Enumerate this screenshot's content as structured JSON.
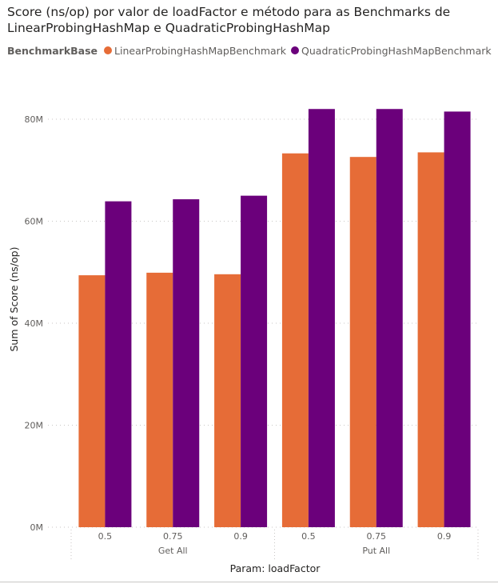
{
  "title_lines": [
    "Score (ns/op) por valor de loadFactor e método para as Benchmarks de",
    "LinearProbingHashMap e QuadraticProbingHashMap"
  ],
  "legend": {
    "title": "BenchmarkBase",
    "items": [
      {
        "label": "LinearProbingHashMapBenchmark",
        "color": "#E66C37"
      },
      {
        "label": "QuadraticProbingHashMapBenchmark",
        "color": "#6B007B"
      }
    ]
  },
  "chart_data": {
    "type": "bar",
    "xlabel": "Param: loadFactor",
    "ylabel": "Sum of Score (ns/op)",
    "ylim": [
      0,
      80000000
    ],
    "y_ticks": [
      {
        "value": 0,
        "label": "0M"
      },
      {
        "value": 20000000,
        "label": "20M"
      },
      {
        "value": 40000000,
        "label": "40M"
      },
      {
        "value": 60000000,
        "label": "60M"
      },
      {
        "value": 80000000,
        "label": "80M"
      }
    ],
    "grid": true,
    "groups": [
      {
        "name": "Get All",
        "categories": [
          "0.5",
          "0.75",
          "0.9"
        ]
      },
      {
        "name": "Put All",
        "categories": [
          "0.5",
          "0.75",
          "0.9"
        ]
      }
    ],
    "series": [
      {
        "name": "LinearProbingHashMapBenchmark",
        "color": "#E66C37",
        "values": [
          49400000,
          49900000,
          49600000,
          73300000,
          72600000,
          73500000
        ]
      },
      {
        "name": "QuadraticProbingHashMapBenchmark",
        "color": "#6B007B",
        "values": [
          63900000,
          64300000,
          65000000,
          82000000,
          82000000,
          81500000
        ]
      }
    ]
  }
}
